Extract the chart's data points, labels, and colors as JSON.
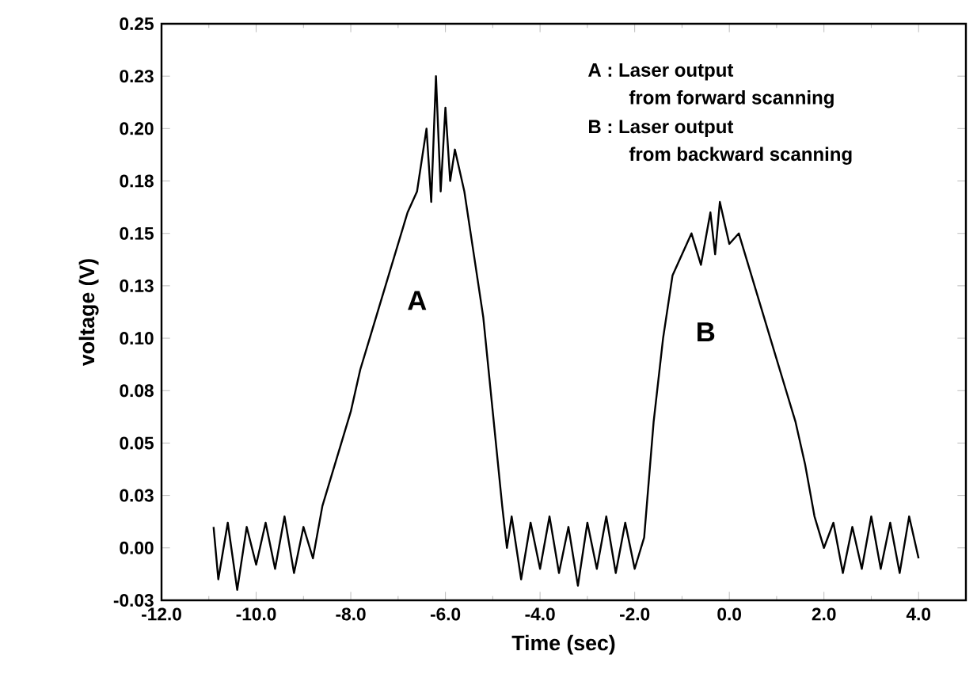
{
  "chart_data": {
    "type": "line",
    "xlabel": "Time (sec)",
    "ylabel": "voltage (V)",
    "xlim": [
      -12,
      5
    ],
    "ylim": [
      -0.025,
      0.25
    ],
    "xticks": [
      {
        "value": -12,
        "label": "-12.0"
      },
      {
        "value": -10,
        "label": "-10.0"
      },
      {
        "value": -8,
        "label": "-8.0"
      },
      {
        "value": -6,
        "label": "-6.0"
      },
      {
        "value": -4,
        "label": "-4.0"
      },
      {
        "value": -2,
        "label": "-2.0"
      },
      {
        "value": 0,
        "label": "0.0"
      },
      {
        "value": 2,
        "label": "2.0"
      },
      {
        "value": 4,
        "label": "4.0"
      }
    ],
    "yticks": [
      {
        "value": -0.025,
        "label": "-0.03"
      },
      {
        "value": 0,
        "label": "0.00"
      },
      {
        "value": 0.025,
        "label": "0.03"
      },
      {
        "value": 0.05,
        "label": "0.05"
      },
      {
        "value": 0.075,
        "label": "0.08"
      },
      {
        "value": 0.1,
        "label": "0.10"
      },
      {
        "value": 0.125,
        "label": "0.13"
      },
      {
        "value": 0.15,
        "label": "0.15"
      },
      {
        "value": 0.175,
        "label": "0.18"
      },
      {
        "value": 0.2,
        "label": "0.20"
      },
      {
        "value": 0.225,
        "label": "0.23"
      },
      {
        "value": 0.25,
        "label": "0.25"
      }
    ],
    "annotations": [
      "A : Laser output",
      "from forward scanning",
      "B : Laser output",
      "from  backward scanning",
      "A",
      "B"
    ],
    "series": [
      {
        "color": "#000000",
        "x": [
          -10.9,
          -10.8,
          -10.6,
          -10.4,
          -10.2,
          -10.0,
          -9.8,
          -9.6,
          -9.4,
          -9.2,
          -9.0,
          -8.8,
          -8.6,
          -8.4,
          -8.2,
          -8.0,
          -7.8,
          -7.6,
          -7.4,
          -7.2,
          -7.0,
          -6.8,
          -6.6,
          -6.4,
          -6.3,
          -6.2,
          -6.1,
          -6.0,
          -5.9,
          -5.8,
          -5.6,
          -5.4,
          -5.2,
          -5.0,
          -4.8,
          -4.7,
          -4.6,
          -4.4,
          -4.2,
          -4.0,
          -3.8,
          -3.6,
          -3.4,
          -3.2,
          -3.0,
          -2.8,
          -2.6,
          -2.4,
          -2.2,
          -2.0,
          -1.8,
          -1.6,
          -1.4,
          -1.2,
          -1.0,
          -0.8,
          -0.6,
          -0.4,
          -0.3,
          -0.2,
          0.0,
          0.2,
          0.4,
          0.6,
          0.8,
          1.0,
          1.2,
          1.4,
          1.6,
          1.8,
          2.0,
          2.2,
          2.4,
          2.6,
          2.8,
          3.0,
          3.2,
          3.4,
          3.6,
          3.8,
          4.0
        ],
        "values": [
          0.01,
          -0.015,
          0.012,
          -0.02,
          0.01,
          -0.008,
          0.012,
          -0.01,
          0.015,
          -0.012,
          0.01,
          -0.005,
          0.02,
          0.035,
          0.05,
          0.065,
          0.085,
          0.1,
          0.115,
          0.13,
          0.145,
          0.16,
          0.17,
          0.2,
          0.165,
          0.225,
          0.17,
          0.21,
          0.175,
          0.19,
          0.17,
          0.14,
          0.11,
          0.065,
          0.02,
          0.0,
          0.015,
          -0.015,
          0.012,
          -0.01,
          0.015,
          -0.012,
          0.01,
          -0.018,
          0.012,
          -0.01,
          0.015,
          -0.012,
          0.012,
          -0.01,
          0.005,
          0.06,
          0.1,
          0.13,
          0.14,
          0.15,
          0.135,
          0.16,
          0.14,
          0.165,
          0.145,
          0.15,
          0.135,
          0.12,
          0.105,
          0.09,
          0.075,
          0.06,
          0.04,
          0.015,
          0.0,
          0.012,
          -0.012,
          0.01,
          -0.01,
          0.015,
          -0.01,
          0.012,
          -0.012,
          0.015,
          -0.005
        ]
      }
    ]
  }
}
